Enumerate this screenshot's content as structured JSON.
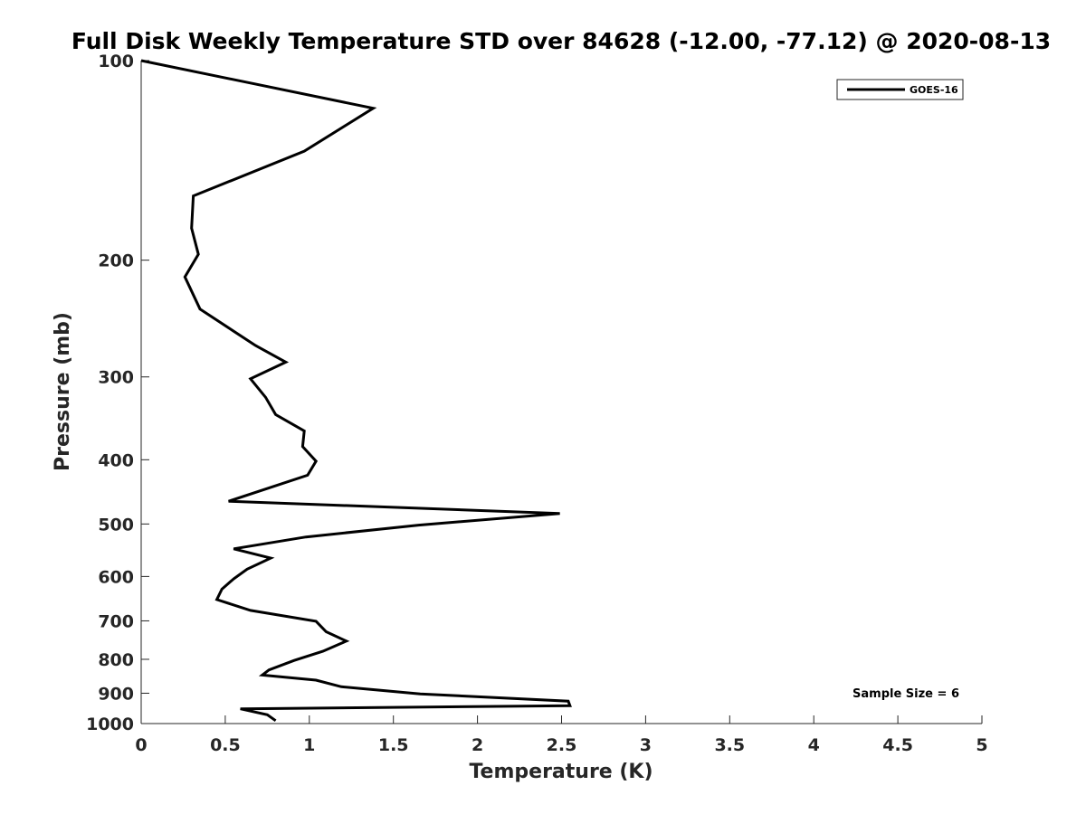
{
  "chart_data": {
    "type": "line",
    "title": "Full Disk Weekly Temperature STD over 84628 (-12.00, -77.12) @ 2020-08-13",
    "xlabel": "Temperature (K)",
    "ylabel": "Pressure (mb)",
    "xlim": [
      0,
      5
    ],
    "ylim": [
      100,
      1000
    ],
    "yscale": "log",
    "y_reversed": true,
    "grid": false,
    "x_ticks": [
      0,
      0.5,
      1,
      1.5,
      2,
      2.5,
      3,
      3.5,
      4,
      4.5,
      5
    ],
    "x_tick_labels": [
      "0",
      "0.5",
      "1",
      "1.5",
      "2",
      "2.5",
      "3",
      "3.5",
      "4",
      "4.5",
      "5"
    ],
    "y_ticks": [
      100,
      200,
      300,
      400,
      500,
      600,
      700,
      800,
      900,
      1000
    ],
    "y_tick_labels": [
      "100",
      "200",
      "300",
      "400",
      "500",
      "600",
      "700",
      "800",
      "900",
      "1000"
    ],
    "legend": {
      "placement": "top-right",
      "entries": [
        "GOES-16"
      ]
    },
    "annotation": "Sample Size = 6",
    "series": [
      {
        "name": "GOES-16",
        "color": "#000000",
        "points": [
          [
            0.0,
            100
          ],
          [
            1.38,
            118
          ],
          [
            0.97,
            137
          ],
          [
            0.31,
            160
          ],
          [
            0.3,
            179
          ],
          [
            0.34,
            196
          ],
          [
            0.26,
            212
          ],
          [
            0.35,
            237
          ],
          [
            0.68,
            269
          ],
          [
            0.86,
            285
          ],
          [
            0.65,
            302
          ],
          [
            0.74,
            322
          ],
          [
            0.8,
            342
          ],
          [
            0.97,
            362
          ],
          [
            0.96,
            382
          ],
          [
            1.04,
            402
          ],
          [
            0.99,
            422
          ],
          [
            0.52,
            462
          ],
          [
            2.49,
            482
          ],
          [
            1.65,
            502
          ],
          [
            0.98,
            523
          ],
          [
            0.55,
            545
          ],
          [
            0.77,
            563
          ],
          [
            0.63,
            585
          ],
          [
            0.55,
            605
          ],
          [
            0.48,
            627
          ],
          [
            0.45,
            650
          ],
          [
            0.65,
            675
          ],
          [
            1.04,
            701
          ],
          [
            1.1,
            727
          ],
          [
            1.22,
            751
          ],
          [
            1.08,
            778
          ],
          [
            0.91,
            803
          ],
          [
            0.76,
            830
          ],
          [
            0.72,
            845
          ],
          [
            1.04,
            860
          ],
          [
            1.19,
            880
          ],
          [
            1.66,
            902
          ],
          [
            2.54,
            925
          ],
          [
            2.55,
            940
          ],
          [
            0.59,
            950
          ],
          [
            0.75,
            970
          ],
          [
            0.8,
            990
          ]
        ]
      }
    ]
  }
}
